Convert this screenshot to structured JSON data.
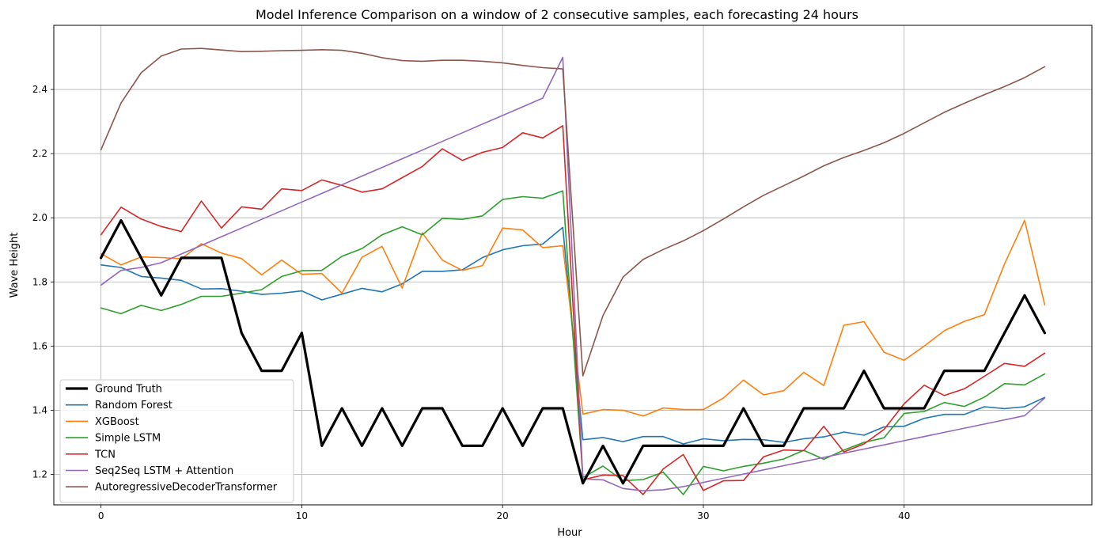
{
  "chart_data": {
    "type": "line",
    "title": "Model Inference Comparison on a window of 2 consecutive samples, each forecasting 24 hours",
    "xlabel": "Hour",
    "ylabel": "Wave Height",
    "xlim": [
      -2.35,
      49.35
    ],
    "ylim": [
      1.105,
      2.6
    ],
    "xticks": [
      0,
      10,
      20,
      30,
      40
    ],
    "yticks": [
      1.2,
      1.4,
      1.6,
      1.8,
      2.0,
      2.2,
      2.4
    ],
    "xtick_labels": [
      "0",
      "10",
      "20",
      "30",
      "40"
    ],
    "ytick_labels": [
      "1.2",
      "1.4",
      "1.6",
      "1.8",
      "2.0",
      "2.2",
      "2.4"
    ],
    "grid": true,
    "legend_position": "lower-left",
    "x": [
      0,
      1,
      2,
      3,
      4,
      5,
      6,
      7,
      8,
      9,
      10,
      11,
      12,
      13,
      14,
      15,
      16,
      17,
      18,
      19,
      20,
      21,
      22,
      23,
      24,
      25,
      26,
      27,
      28,
      29,
      30,
      31,
      32,
      33,
      34,
      35,
      36,
      37,
      38,
      39,
      40,
      41,
      42,
      43,
      44,
      45,
      46,
      47
    ],
    "series": [
      {
        "name": "Ground Truth",
        "color": "#000000",
        "width": 3.2,
        "values": [
          1.875,
          1.992,
          1.875,
          1.758,
          1.875,
          1.875,
          1.875,
          1.641,
          1.523,
          1.523,
          1.641,
          1.289,
          1.406,
          1.289,
          1.406,
          1.289,
          1.406,
          1.406,
          1.289,
          1.289,
          1.406,
          1.289,
          1.406,
          1.406,
          1.172,
          1.289,
          1.172,
          1.289,
          1.289,
          1.289,
          1.289,
          1.289,
          1.406,
          1.289,
          1.289,
          1.406,
          1.406,
          1.406,
          1.523,
          1.406,
          1.406,
          1.406,
          1.523,
          1.523,
          1.523,
          1.641,
          1.758,
          1.641
        ]
      },
      {
        "name": "Random Forest",
        "color": "#1f77b4",
        "width": 1.6,
        "values": [
          1.853,
          1.845,
          1.817,
          1.812,
          1.805,
          1.778,
          1.779,
          1.771,
          1.761,
          1.765,
          1.772,
          1.744,
          1.762,
          1.78,
          1.769,
          1.794,
          1.833,
          1.833,
          1.838,
          1.876,
          1.9,
          1.913,
          1.918,
          1.97,
          1.308,
          1.315,
          1.302,
          1.318,
          1.318,
          1.295,
          1.311,
          1.305,
          1.309,
          1.308,
          1.3,
          1.311,
          1.317,
          1.332,
          1.322,
          1.348,
          1.35,
          1.375,
          1.387,
          1.387,
          1.411,
          1.405,
          1.411,
          1.44
        ]
      },
      {
        "name": "XGBoost",
        "color": "#ff7f0e",
        "width": 1.6,
        "values": [
          1.888,
          1.853,
          1.878,
          1.876,
          1.872,
          1.919,
          1.89,
          1.873,
          1.822,
          1.868,
          1.824,
          1.826,
          1.765,
          1.877,
          1.911,
          1.781,
          1.953,
          1.868,
          1.836,
          1.851,
          1.968,
          1.962,
          1.907,
          1.913,
          1.388,
          1.402,
          1.4,
          1.382,
          1.407,
          1.402,
          1.402,
          1.438,
          1.494,
          1.448,
          1.461,
          1.518,
          1.477,
          1.665,
          1.676,
          1.581,
          1.556,
          1.6,
          1.648,
          1.677,
          1.698,
          1.856,
          1.992,
          1.729
        ]
      },
      {
        "name": "Simple LSTM",
        "color": "#2ca02c",
        "width": 1.6,
        "values": [
          1.719,
          1.701,
          1.727,
          1.711,
          1.73,
          1.755,
          1.755,
          1.765,
          1.776,
          1.817,
          1.835,
          1.836,
          1.88,
          1.904,
          1.947,
          1.972,
          1.947,
          1.998,
          1.995,
          2.006,
          2.057,
          2.066,
          2.061,
          2.084,
          1.19,
          1.226,
          1.18,
          1.184,
          1.207,
          1.137,
          1.225,
          1.211,
          1.225,
          1.235,
          1.248,
          1.275,
          1.247,
          1.276,
          1.3,
          1.314,
          1.39,
          1.396,
          1.424,
          1.412,
          1.441,
          1.483,
          1.479,
          1.513
        ]
      },
      {
        "name": "TCN",
        "color": "#d62728",
        "width": 1.6,
        "values": [
          1.947,
          2.033,
          1.996,
          1.973,
          1.957,
          2.052,
          1.968,
          2.034,
          2.027,
          2.09,
          2.085,
          2.118,
          2.101,
          2.08,
          2.09,
          2.125,
          2.16,
          2.215,
          2.179,
          2.204,
          2.219,
          2.265,
          2.249,
          2.287,
          1.183,
          1.198,
          1.196,
          1.137,
          1.217,
          1.262,
          1.15,
          1.18,
          1.181,
          1.255,
          1.276,
          1.274,
          1.35,
          1.27,
          1.295,
          1.34,
          1.42,
          1.478,
          1.446,
          1.467,
          1.506,
          1.546,
          1.537,
          1.578
        ]
      },
      {
        "name": "Seq2Seq LSTM + Attention",
        "color": "#9467bd",
        "width": 1.6,
        "values": [
          1.79,
          1.836,
          1.845,
          1.86,
          1.887,
          1.914,
          1.941,
          1.968,
          1.995,
          2.022,
          2.049,
          2.076,
          2.103,
          2.13,
          2.157,
          2.184,
          2.211,
          2.238,
          2.265,
          2.292,
          2.319,
          2.346,
          2.373,
          2.5,
          1.186,
          1.183,
          1.156,
          1.149,
          1.152,
          1.162,
          1.175,
          1.188,
          1.201,
          1.214,
          1.227,
          1.24,
          1.253,
          1.266,
          1.279,
          1.292,
          1.305,
          1.318,
          1.331,
          1.344,
          1.357,
          1.37,
          1.383,
          1.438
        ]
      },
      {
        "name": "AutoregressiveDecoderTransformer",
        "color": "#8c564b",
        "width": 1.6,
        "values": [
          2.212,
          2.358,
          2.452,
          2.504,
          2.526,
          2.528,
          2.523,
          2.518,
          2.519,
          2.521,
          2.522,
          2.524,
          2.522,
          2.513,
          2.499,
          2.49,
          2.488,
          2.491,
          2.491,
          2.488,
          2.483,
          2.475,
          2.468,
          2.464,
          1.507,
          1.695,
          1.815,
          1.87,
          1.901,
          1.928,
          1.96,
          1.996,
          2.034,
          2.07,
          2.1,
          2.13,
          2.162,
          2.188,
          2.21,
          2.234,
          2.263,
          2.296,
          2.329,
          2.357,
          2.384,
          2.409,
          2.437,
          2.471
        ]
      }
    ]
  }
}
